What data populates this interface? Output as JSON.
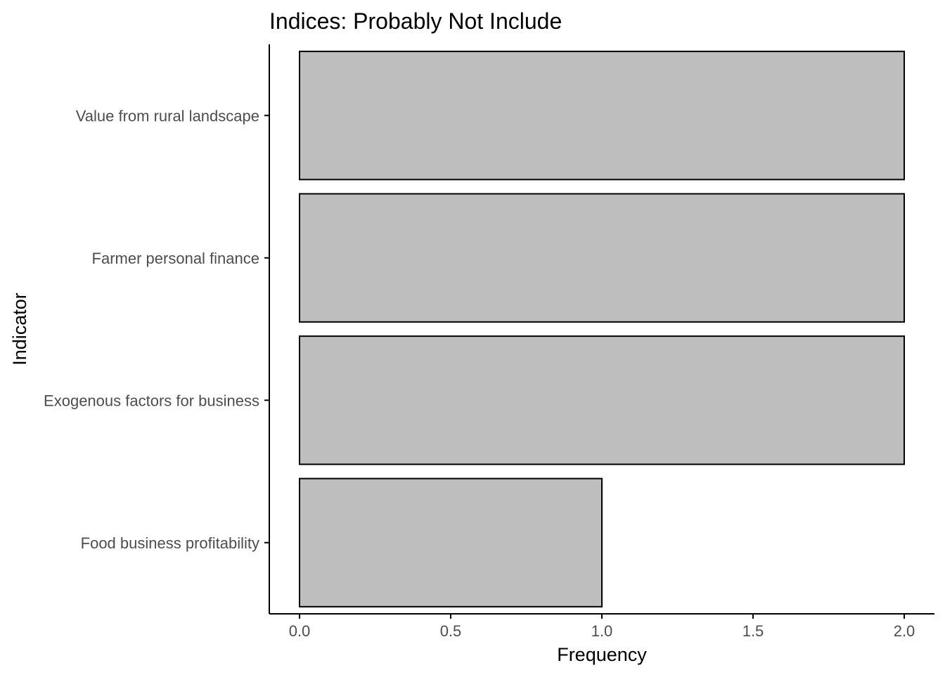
{
  "chart_data": {
    "type": "bar",
    "orientation": "horizontal",
    "title": "Indices: Probably Not Include",
    "xlabel": "Frequency",
    "ylabel": "Indicator",
    "categories": [
      "Value from rural landscape",
      "Farmer personal finance",
      "Exogenous factors for business",
      "Food business profitability"
    ],
    "values": [
      2,
      2,
      2,
      1
    ],
    "xlim": [
      -0.1,
      2.1
    ],
    "xticks": [
      0.0,
      0.5,
      1.0,
      1.5,
      2.0
    ],
    "xtick_labels": [
      "0.0",
      "0.5",
      "1.0",
      "1.5",
      "2.0"
    ],
    "grid": false,
    "colors": {
      "bar_fill": "#bebebe",
      "bar_stroke": "#000000",
      "tick_label": "#4d4d4d",
      "axis": "#000000"
    }
  }
}
